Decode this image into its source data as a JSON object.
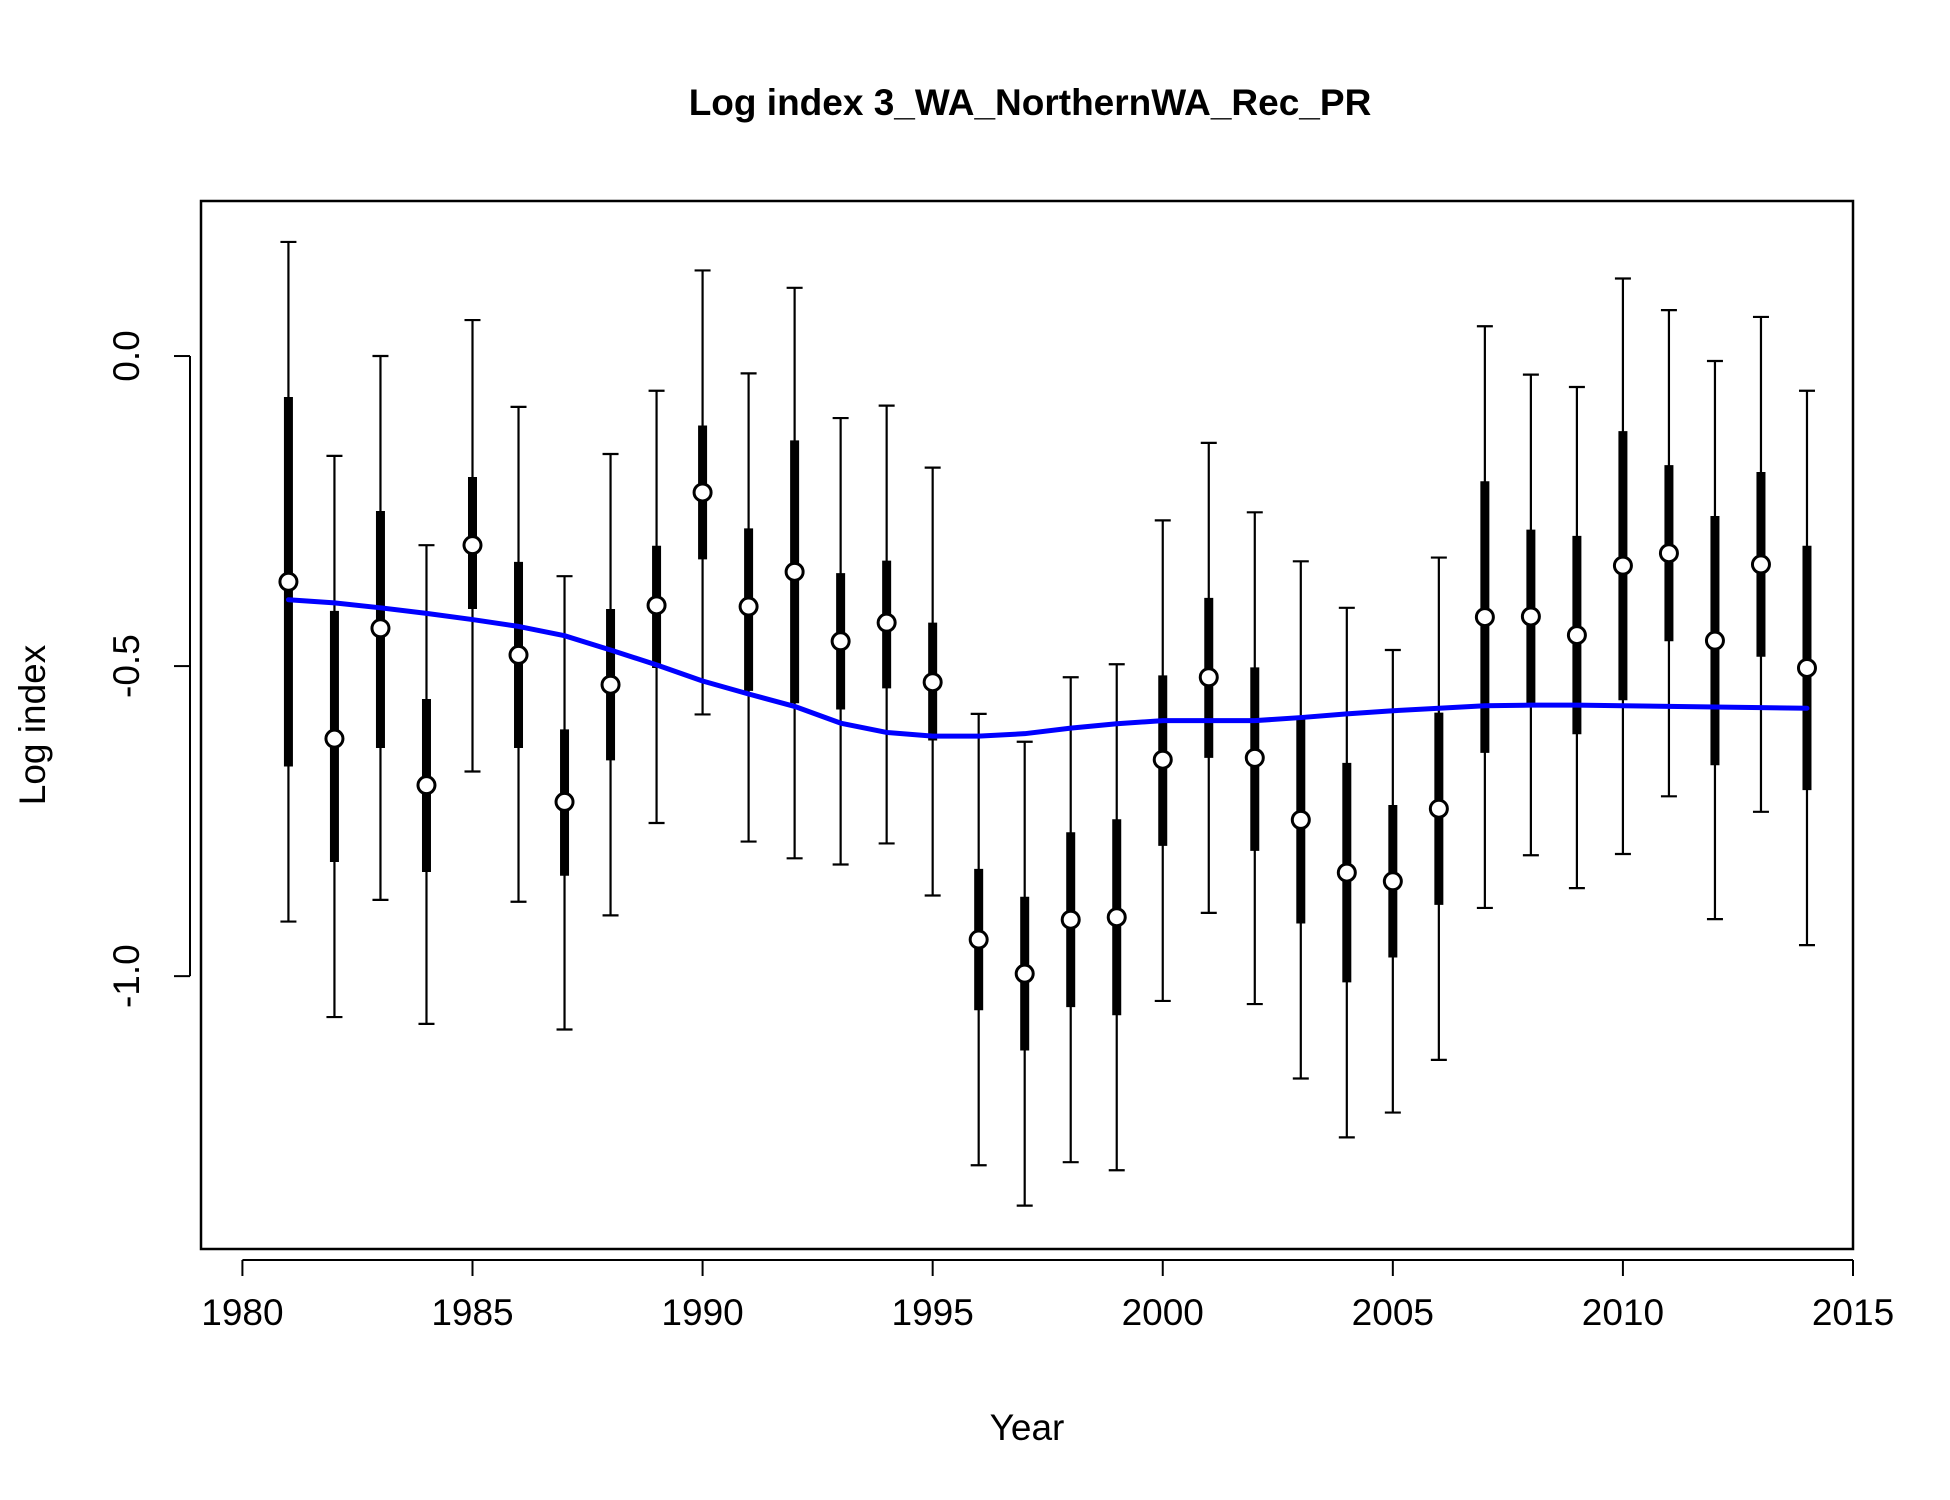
{
  "chart_data": {
    "type": "scatter",
    "title": "Log index 3_WA_NorthernWA_Rec_PR",
    "xlabel": "Year",
    "ylabel": "Log index",
    "xlim": [
      1979.1,
      2015.0
    ],
    "ylim": [
      -1.44,
      0.25
    ],
    "x_ticks": [
      1980,
      1985,
      1990,
      1995,
      2000,
      2005,
      2010,
      2015
    ],
    "x_tick_labels": [
      "1980",
      "1985",
      "1990",
      "1995",
      "2000",
      "2005",
      "2010",
      "2015"
    ],
    "y_ticks": [
      -1.0,
      -0.5,
      0.0
    ],
    "y_tick_labels": [
      "-1.0",
      "-0.5",
      "0.0"
    ],
    "grid": false,
    "legend": "none",
    "colors": {
      "observed": "#000000",
      "fit": "#0000ff"
    },
    "series": [
      {
        "type": "points_with_intervals",
        "x": [
          1981,
          1982,
          1983,
          1984,
          1985,
          1986,
          1987,
          1988,
          1989,
          1990,
          1991,
          1992,
          1993,
          1994,
          1995,
          1996,
          1997,
          1998,
          1999,
          2000,
          2001,
          2002,
          2003,
          2004,
          2005,
          2006,
          2007,
          2008,
          2009,
          2010,
          2011,
          2012,
          2013,
          2014
        ],
        "y": [
          -0.364,
          -0.617,
          -0.439,
          -0.692,
          -0.305,
          -0.482,
          -0.719,
          -0.53,
          -0.402,
          -0.22,
          -0.404,
          -0.348,
          -0.46,
          -0.43,
          -0.526,
          -0.941,
          -0.996,
          -0.909,
          -0.905,
          -0.651,
          -0.518,
          -0.648,
          -0.748,
          -0.833,
          -0.847,
          -0.73,
          -0.421,
          -0.42,
          -0.45,
          -0.338,
          -0.318,
          -0.459,
          -0.336,
          -0.503
        ],
        "inner_low": [
          -0.662,
          -0.816,
          -0.632,
          -0.832,
          -0.408,
          -0.632,
          -0.838,
          -0.652,
          -0.503,
          -0.328,
          -0.54,
          -0.56,
          -0.57,
          -0.536,
          -0.62,
          -1.055,
          -1.12,
          -1.05,
          -1.063,
          -0.79,
          -0.648,
          -0.798,
          -0.915,
          -1.01,
          -0.97,
          -0.885,
          -0.64,
          -0.56,
          -0.61,
          -0.555,
          -0.46,
          -0.66,
          -0.485,
          -0.7
        ],
        "inner_high": [
          -0.066,
          -0.411,
          -0.25,
          -0.553,
          -0.195,
          -0.332,
          -0.602,
          -0.408,
          -0.306,
          -0.112,
          -0.278,
          -0.136,
          -0.35,
          -0.33,
          -0.43,
          -0.827,
          -0.872,
          -0.768,
          -0.747,
          -0.515,
          -0.39,
          -0.502,
          -0.581,
          -0.656,
          -0.724,
          -0.575,
          -0.202,
          -0.28,
          -0.29,
          -0.121,
          -0.176,
          -0.258,
          -0.187,
          -0.306
        ],
        "outer_low": [
          -0.912,
          -1.066,
          -0.877,
          -1.077,
          -0.67,
          -0.88,
          -1.086,
          -0.902,
          -0.753,
          -0.578,
          -0.783,
          -0.81,
          -0.82,
          -0.786,
          -0.87,
          -1.305,
          -1.37,
          -1.3,
          -1.313,
          -1.04,
          -0.898,
          -1.045,
          -1.165,
          -1.26,
          -1.22,
          -1.135,
          -0.89,
          -0.805,
          -0.858,
          -0.803,
          -0.71,
          -0.908,
          -0.735,
          -0.95
        ],
        "outer_high": [
          0.184,
          -0.161,
          0.0,
          -0.305,
          0.058,
          -0.082,
          -0.355,
          -0.158,
          -0.056,
          0.138,
          -0.028,
          0.11,
          -0.1,
          -0.08,
          -0.18,
          -0.577,
          -0.622,
          -0.518,
          -0.497,
          -0.265,
          -0.14,
          -0.252,
          -0.331,
          -0.406,
          -0.474,
          -0.325,
          0.048,
          -0.03,
          -0.05,
          0.125,
          0.074,
          -0.008,
          0.063,
          -0.056
        ]
      },
      {
        "type": "line",
        "x": [
          1981,
          1982,
          1983,
          1984,
          1985,
          1986,
          1987,
          1988,
          1989,
          1990,
          1991,
          1992,
          1993,
          1994,
          1995,
          1996,
          1997,
          1998,
          1999,
          2000,
          2001,
          2002,
          2003,
          2004,
          2005,
          2006,
          2007,
          2008,
          2009,
          2010,
          2011,
          2012,
          2013,
          2014
        ],
        "y": [
          -0.393,
          -0.398,
          -0.406,
          -0.415,
          -0.425,
          -0.436,
          -0.451,
          -0.474,
          -0.498,
          -0.524,
          -0.545,
          -0.565,
          -0.592,
          -0.607,
          -0.613,
          -0.613,
          -0.609,
          -0.6,
          -0.593,
          -0.588,
          -0.588,
          -0.588,
          -0.583,
          -0.577,
          -0.572,
          -0.568,
          -0.564,
          -0.563,
          -0.563,
          -0.564,
          -0.565,
          -0.566,
          -0.567,
          -0.568
        ]
      }
    ]
  }
}
